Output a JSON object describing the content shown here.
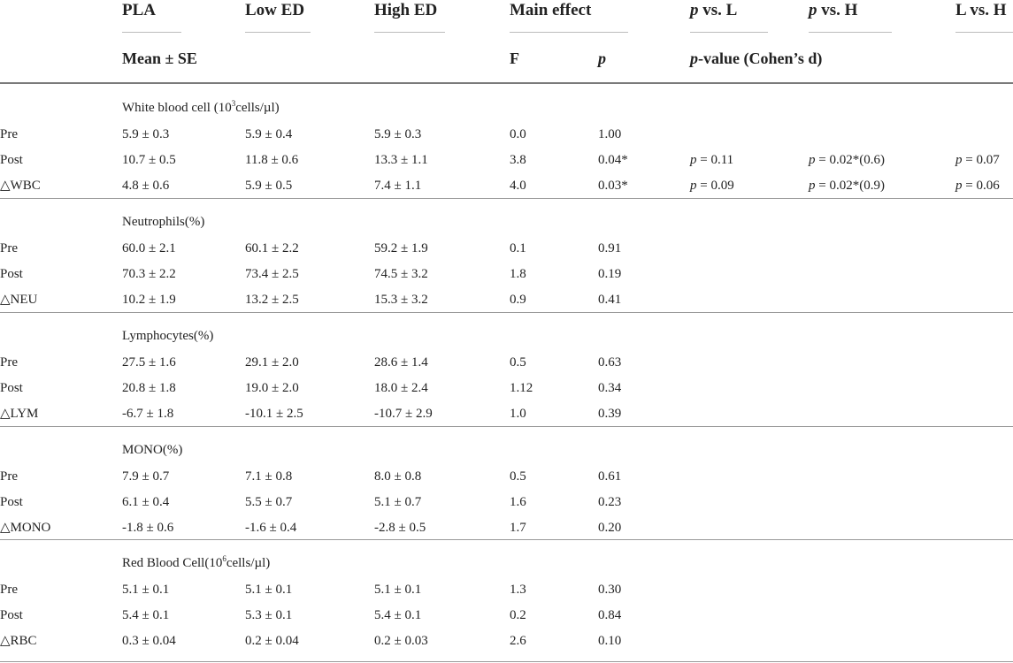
{
  "header": {
    "col_pla": "PLA",
    "col_low": "Low ED",
    "col_high": "High ED",
    "col_main": "Main effect",
    "col_pvsl_p": "p",
    "col_pvsl_rest": " vs. L",
    "col_pvsh_p": "p",
    "col_pvsh_rest": " vs. H",
    "col_lvsh": "L vs. H",
    "sub_mean": "Mean ± SE",
    "sub_f": "F",
    "sub_p": "p",
    "sub_pval_p": "p",
    "sub_pval_rest": "-value (Cohen’s d)"
  },
  "sections": [
    {
      "title": "White blood cell (10",
      "title_sup": "3",
      "title_end": "cells/µl)",
      "rows": [
        {
          "label": "Pre",
          "pla": "5.9 ± 0.3",
          "low": "5.9 ± 0.4",
          "high": "5.9 ± 0.3",
          "f": "0.0",
          "p": "1.00",
          "pl": "",
          "ph": "",
          "lh": ""
        },
        {
          "label": "Post",
          "pla": "10.7 ± 0.5",
          "low": "11.8 ± 0.6",
          "high": "13.3 ± 1.1",
          "f": "3.8",
          "p": "0.04*",
          "pl": "p = 0.11",
          "ph": "p = 0.02*(0.6)",
          "lh": "p = 0.07"
        },
        {
          "label": "△WBC",
          "pla": "4.8 ± 0.6",
          "low": "5.9 ± 0.5",
          "high": "7.4 ± 1.1",
          "f": "4.0",
          "p": "0.03*",
          "pl": "p = 0.09",
          "ph": "p = 0.02*(0.9)",
          "lh": "p = 0.06"
        }
      ]
    },
    {
      "title": "Neutrophils(%)",
      "title_sup": "",
      "title_end": "",
      "rows": [
        {
          "label": "Pre",
          "pla": "60.0 ± 2.1",
          "low": "60.1 ± 2.2",
          "high": "59.2 ± 1.9",
          "f": "0.1",
          "p": "0.91",
          "pl": "",
          "ph": "",
          "lh": ""
        },
        {
          "label": "Post",
          "pla": "70.3 ± 2.2",
          "low": "73.4 ± 2.5",
          "high": "74.5 ± 3.2",
          "f": "1.8",
          "p": "0.19",
          "pl": "",
          "ph": "",
          "lh": ""
        },
        {
          "label": "△NEU",
          "pla": "10.2 ± 1.9",
          "low": "13.2 ± 2.5",
          "high": "15.3 ± 3.2",
          "f": "0.9",
          "p": "0.41",
          "pl": "",
          "ph": "",
          "lh": ""
        }
      ]
    },
    {
      "title": "Lymphocytes(%)",
      "title_sup": "",
      "title_end": "",
      "rows": [
        {
          "label": "Pre",
          "pla": "27.5 ± 1.6",
          "low": "29.1 ± 2.0",
          "high": "28.6 ± 1.4",
          "f": "0.5",
          "p": "0.63",
          "pl": "",
          "ph": "",
          "lh": ""
        },
        {
          "label": "Post",
          "pla": "20.8 ± 1.8",
          "low": "19.0 ± 2.0",
          "high": "18.0 ± 2.4",
          "f": "1.12",
          "p": "0.34",
          "pl": "",
          "ph": "",
          "lh": ""
        },
        {
          "label": "△LYM",
          "pla": "-6.7 ± 1.8",
          "low": "-10.1 ± 2.5",
          "high": "-10.7 ± 2.9",
          "f": "1.0",
          "p": "0.39",
          "pl": "",
          "ph": "",
          "lh": ""
        }
      ]
    },
    {
      "title": "MONO(%)",
      "title_sup": "",
      "title_end": "",
      "rows": [
        {
          "label": "Pre",
          "pla": "7.9 ± 0.7",
          "low": "7.1 ± 0.8",
          "high": "8.0 ± 0.8",
          "f": "0.5",
          "p": "0.61",
          "pl": "",
          "ph": "",
          "lh": ""
        },
        {
          "label": "Post",
          "pla": "6.1 ± 0.4",
          "low": "5.5 ± 0.7",
          "high": "5.1 ± 0.7",
          "f": "1.6",
          "p": "0.23",
          "pl": "",
          "ph": "",
          "lh": ""
        },
        {
          "label": "△MONO",
          "pla": "-1.8 ± 0.6",
          "low": "-1.6 ± 0.4",
          "high": "-2.8 ± 0.5",
          "f": "1.7",
          "p": "0.20",
          "pl": "",
          "ph": "",
          "lh": ""
        }
      ]
    },
    {
      "title": "Red Blood Cell(10",
      "title_sup": "6",
      "title_end": "cells/µl)",
      "rows": [
        {
          "label": "Pre",
          "pla": "5.1 ± 0.1",
          "low": "5.1 ± 0.1",
          "high": "5.1 ± 0.1",
          "f": "1.3",
          "p": "0.30",
          "pl": "",
          "ph": "",
          "lh": ""
        },
        {
          "label": "Post",
          "pla": "5.4 ± 0.1",
          "low": "5.3 ± 0.1",
          "high": "5.4 ± 0.1",
          "f": "0.2",
          "p": "0.84",
          "pl": "",
          "ph": "",
          "lh": ""
        },
        {
          "label": "△RBC",
          "pla": "0.3 ± 0.04",
          "low": "0.2 ± 0.04",
          "high": "0.2 ± 0.03",
          "f": "2.6",
          "p": "0.10",
          "pl": "",
          "ph": "",
          "lh": ""
        }
      ]
    }
  ]
}
